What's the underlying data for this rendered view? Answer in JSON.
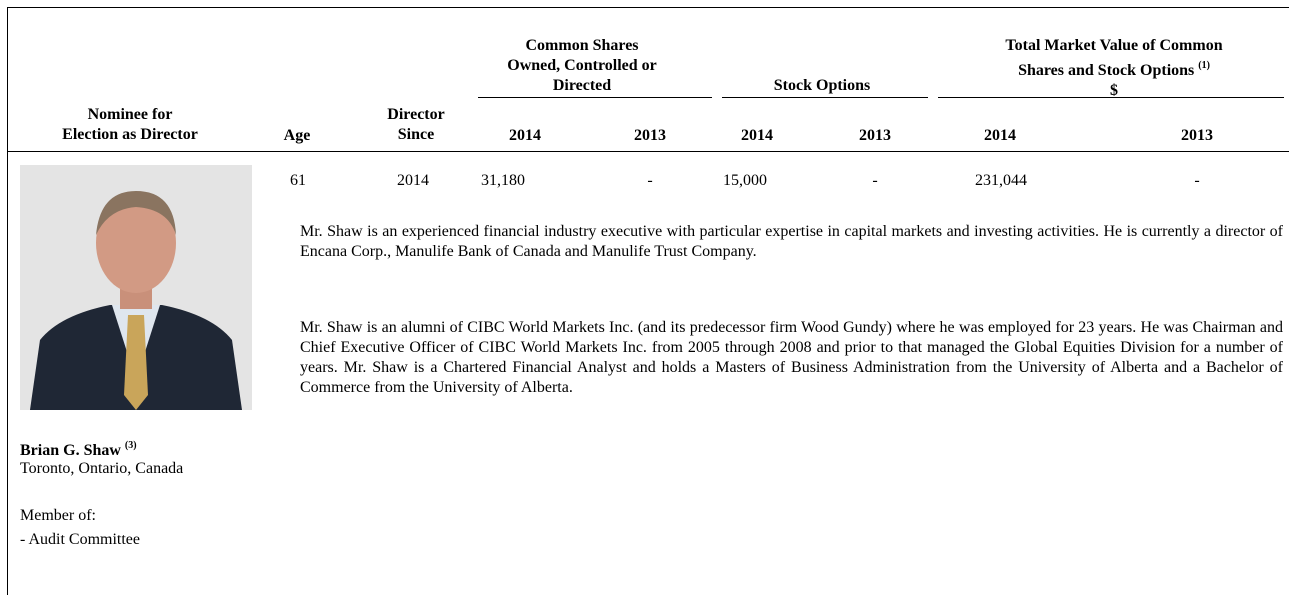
{
  "table": {
    "headers": {
      "nominee": [
        "Nominee for",
        "Election as Director"
      ],
      "age": "Age",
      "director_since": [
        "Director",
        "Since"
      ],
      "common_shares": [
        "Common Shares",
        "Owned, Controlled or",
        "Directed"
      ],
      "stock_options": "Stock Options",
      "market_value": [
        "Total Market Value of Common",
        "Shares and Stock Options",
        "$"
      ],
      "market_value_note": "(1)",
      "years": [
        "2014",
        "2013",
        "2014",
        "2013",
        "2014",
        "2013"
      ]
    },
    "row": {
      "age": "61",
      "director_since": "2014",
      "values": [
        "31,180",
        "-",
        "15,000",
        "-",
        "231,044",
        "-"
      ]
    },
    "nominee": {
      "name": "Brian G. Shaw",
      "note": "(3)",
      "location": "Toronto, Ontario, Canada",
      "member_label": "Member of:",
      "committees": [
        "- Audit Committee"
      ]
    },
    "bio": [
      "Mr. Shaw is an experienced financial industry executive with particular expertise in capital markets and investing activities. He is currently a director of Encana Corp., Manulife Bank of Canada and Manulife Trust Company.",
      "Mr. Shaw is an alumni of CIBC World Markets Inc. (and its predecessor firm Wood Gundy) where he was employed for 23 years. He was Chairman and Chief Executive Officer of CIBC World Markets Inc. from 2005 through 2008 and prior to that managed the Global Equities Division for a number of years. Mr. Shaw is a Chartered Financial Analyst and holds a Masters of Business Administration from the University of Alberta and a Bachelor of Commerce from the University of Alberta."
    ]
  }
}
